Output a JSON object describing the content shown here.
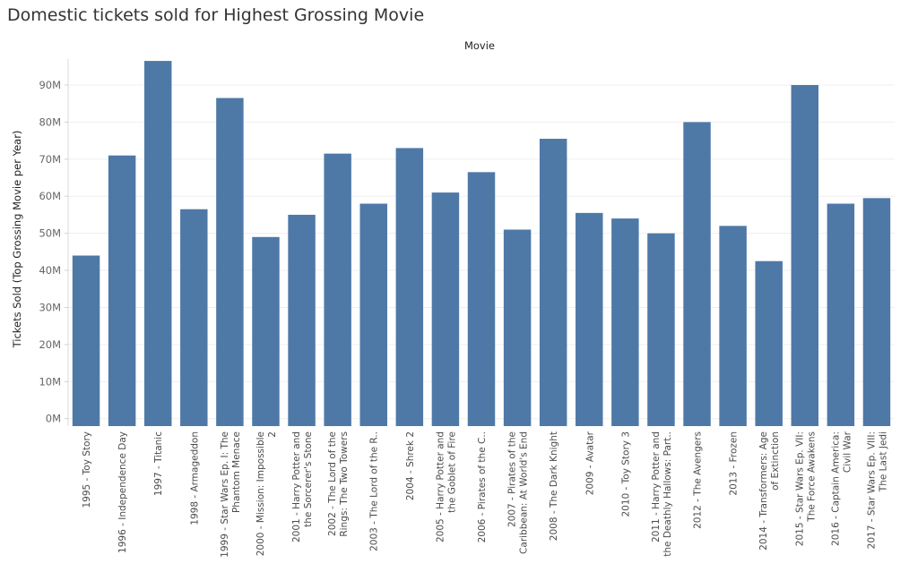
{
  "chart_data": {
    "type": "bar",
    "title": "Domestic tickets sold for Highest Grossing Movie",
    "xlabel": "Movie",
    "ylabel": "Tickets Sold (Top Grossing Movie per Year)",
    "ylim": [
      -2000000,
      97000000
    ],
    "yticks": [
      0,
      10000000,
      20000000,
      30000000,
      40000000,
      50000000,
      60000000,
      70000000,
      80000000,
      90000000
    ],
    "ytick_labels": [
      "0M",
      "10M",
      "20M",
      "30M",
      "40M",
      "50M",
      "60M",
      "70M",
      "80M",
      "90M"
    ],
    "grid": true,
    "bar_color": "#4e79a7",
    "categories": [
      [
        "1995 - Toy Story"
      ],
      [
        "1996 - Independence Day"
      ],
      [
        "1997 - Titanic"
      ],
      [
        "1998 - Armageddon"
      ],
      [
        "1999 - Star Wars Ep. I: The",
        "Phantom Menace"
      ],
      [
        "2000 - Mission: Impossible",
        "2"
      ],
      [
        "2001 - Harry Potter and",
        "the Sorcerer's Stone"
      ],
      [
        "2002 - The Lord of the",
        "Rings: The Two Towers"
      ],
      [
        "2003 - The Lord of the R.."
      ],
      [
        "2004 - Shrek 2"
      ],
      [
        "2005 - Harry Potter and",
        "the Goblet of Fire"
      ],
      [
        "2006 - Pirates of the C.."
      ],
      [
        "2007 - Pirates of the",
        "Caribbean: At World's End"
      ],
      [
        "2008 - The Dark Knight"
      ],
      [
        "2009 - Avatar"
      ],
      [
        "2010 - Toy Story 3"
      ],
      [
        "2011 - Harry Potter and",
        "the Deathly Hallows: Part.."
      ],
      [
        "2012 - The Avengers"
      ],
      [
        "2013 - Frozen"
      ],
      [
        "2014 - Transformers: Age",
        "of Extinction"
      ],
      [
        "2015 - Star Wars Ep. VII:",
        "The Force Awakens"
      ],
      [
        "2016 - Captain America:",
        "Civil War"
      ],
      [
        "2017 - Star Wars Ep. VIII:",
        "The Last Jedi"
      ]
    ],
    "values": [
      44000000,
      71000000,
      96500000,
      56500000,
      86500000,
      49000000,
      55000000,
      71500000,
      58000000,
      73000000,
      61000000,
      66500000,
      51000000,
      75500000,
      55500000,
      54000000,
      50000000,
      80000000,
      52000000,
      42500000,
      90000000,
      58000000,
      59500000
    ]
  }
}
